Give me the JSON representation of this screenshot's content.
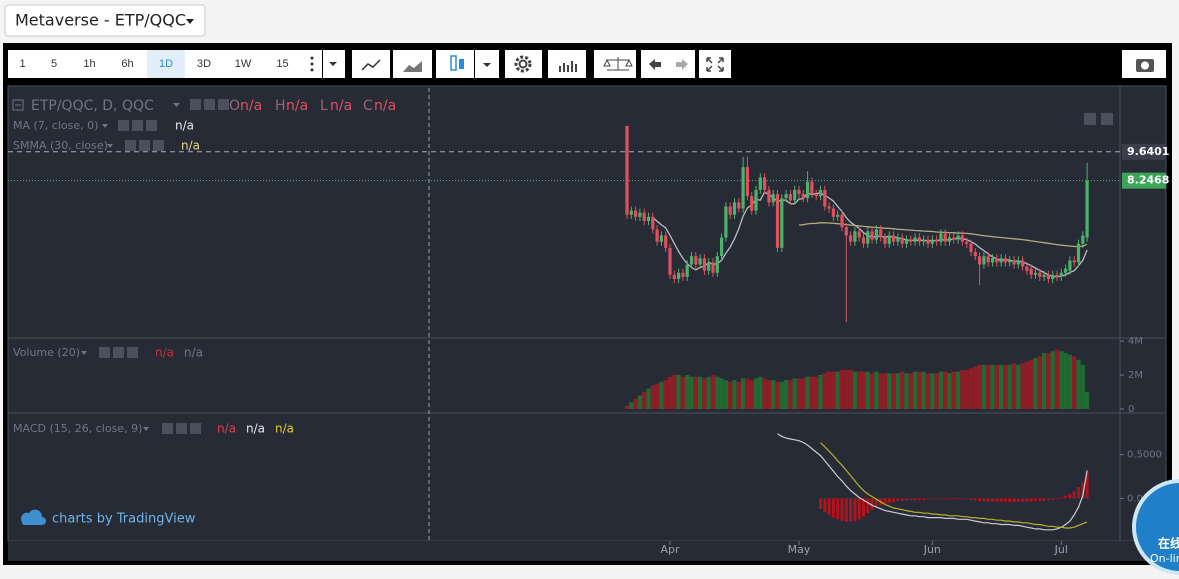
{
  "header": {
    "symbol": "Metaverse - ETP/QQC"
  },
  "toolbar": {
    "intervals": [
      "1",
      "5",
      "1h",
      "6h",
      "1D",
      "3D",
      "1W",
      "15"
    ],
    "active": 4
  },
  "watermark": "charts by TradingView",
  "chat_widget": {
    "label": "在线",
    "sublabel": "On-line"
  },
  "chart_data": [
    {
      "type": "candlestick",
      "title": "ETP/QQC, D, QQC",
      "ohlc_letters": [
        "O",
        "H",
        "L",
        "C"
      ],
      "ohlc_values": [
        "n/a",
        "n/a",
        "n/a",
        "n/a"
      ],
      "categories": [
        null,
        null,
        null,
        null,
        null,
        null,
        null,
        null,
        null,
        null,
        "Apr",
        null,
        null,
        null,
        null,
        null,
        null,
        null,
        null,
        null,
        null,
        null,
        null,
        null,
        null,
        null,
        null,
        null,
        null,
        null,
        null,
        null,
        null,
        null,
        null,
        null,
        null,
        null,
        null,
        null,
        "May",
        null,
        null,
        null,
        null,
        null,
        null,
        null,
        null,
        null,
        null,
        null,
        null,
        null,
        null,
        null,
        null,
        null,
        null,
        null,
        null,
        null,
        null,
        null,
        null,
        null,
        null,
        null,
        null,
        null,
        null,
        "Jun",
        null,
        null,
        null,
        null,
        null,
        null,
        null,
        null,
        null,
        null,
        null,
        null,
        null,
        null,
        null,
        null,
        null,
        null,
        null,
        null,
        null,
        null,
        null,
        null,
        null,
        null,
        null,
        null,
        null,
        "Jul",
        null,
        null,
        null,
        null,
        null,
        null
      ],
      "open": [
        10.89,
        6.6,
        6.8,
        6.5,
        6.7,
        6.3,
        6.5,
        5.9,
        5.3,
        5.6,
        5.0,
        3.7,
        3.5,
        3.8,
        3.6,
        4.2,
        4.6,
        4.2,
        4.5,
        3.9,
        4.3,
        3.8,
        4.6,
        5.5,
        7.0,
        6.6,
        7.2,
        6.9,
        8.9,
        7.5,
        6.8,
        7.8,
        8.4,
        7.8,
        7.2,
        7.6,
        5.0,
        7.4,
        7.6,
        7.3,
        7.8,
        7.6,
        7.4,
        8.2,
        7.6,
        7.5,
        7.8,
        7.0,
        6.9,
        6.5,
        6.6,
        6.0,
        5.6,
        5.3,
        5.8,
        5.5,
        5.2,
        5.8,
        5.4,
        5.9,
        5.5,
        5.2,
        5.6,
        5.3,
        5.5,
        5.2,
        5.4,
        5.3,
        5.5,
        5.3,
        5.4,
        5.2,
        5.4,
        5.3,
        5.7,
        5.3,
        5.5,
        5.4,
        5.6,
        5.3,
        5.2,
        4.8,
        4.6,
        4.2,
        4.6,
        4.3,
        4.5,
        4.3,
        4.5,
        4.3,
        4.4,
        4.2,
        4.4,
        4.1,
        4.0,
        3.7,
        3.8,
        3.6,
        3.7,
        3.5,
        3.7,
        3.6,
        3.8,
        3.9,
        4.4,
        4.3,
        5.2,
        5.5
      ],
      "high": [
        10.89,
        7.0,
        7.0,
        6.9,
        6.9,
        6.7,
        6.7,
        6.1,
        5.8,
        5.8,
        5.2,
        3.9,
        4.0,
        4.0,
        4.4,
        4.8,
        4.8,
        4.7,
        4.7,
        4.5,
        4.5,
        4.8,
        5.7,
        7.2,
        7.2,
        7.4,
        7.4,
        9.4,
        9.4,
        7.7,
        8.0,
        8.6,
        8.6,
        8.0,
        7.8,
        7.8,
        7.6,
        7.8,
        7.8,
        8.0,
        8.0,
        7.8,
        8.7,
        8.4,
        7.8,
        8.0,
        8.0,
        7.2,
        7.1,
        6.8,
        6.8,
        6.2,
        5.8,
        6.0,
        6.0,
        5.7,
        6.0,
        6.0,
        6.1,
        6.1,
        5.7,
        5.8,
        5.8,
        5.7,
        5.7,
        5.6,
        5.6,
        5.7,
        5.7,
        5.6,
        5.6,
        5.6,
        5.6,
        5.9,
        5.9,
        5.7,
        5.7,
        5.8,
        5.8,
        5.5,
        5.4,
        5.0,
        4.8,
        4.8,
        4.8,
        4.7,
        4.7,
        4.7,
        4.7,
        4.6,
        4.6,
        4.6,
        4.6,
        4.3,
        4.2,
        4.0,
        4.0,
        3.9,
        3.9,
        3.9,
        3.9,
        4.0,
        4.2,
        4.6,
        4.6,
        5.4,
        5.8,
        9.11
      ],
      "low": [
        6.4,
        6.4,
        6.3,
        6.3,
        6.1,
        6.1,
        5.7,
        5.1,
        5.1,
        4.8,
        3.5,
        3.3,
        3.3,
        3.4,
        3.4,
        4.0,
        4.0,
        4.0,
        3.7,
        3.7,
        3.6,
        3.6,
        4.4,
        5.3,
        6.4,
        6.4,
        6.7,
        6.7,
        7.3,
        6.6,
        6.6,
        7.6,
        7.6,
        7.0,
        7.0,
        4.8,
        4.8,
        7.2,
        7.1,
        7.1,
        7.4,
        7.2,
        7.2,
        7.4,
        7.3,
        7.3,
        6.8,
        6.7,
        6.3,
        6.3,
        5.8,
        1.42,
        5.1,
        5.1,
        5.3,
        5.0,
        5.0,
        5.2,
        5.2,
        5.3,
        5.0,
        5.0,
        5.1,
        5.1,
        5.0,
        5.0,
        5.1,
        5.1,
        5.1,
        5.1,
        5.0,
        5.0,
        5.1,
        5.1,
        5.1,
        5.1,
        5.2,
        5.2,
        5.1,
        5.0,
        4.6,
        4.4,
        3.2,
        4.0,
        4.1,
        4.1,
        4.1,
        4.1,
        4.1,
        4.1,
        4.0,
        4.0,
        3.9,
        3.7,
        3.5,
        3.5,
        3.4,
        3.4,
        3.3,
        3.3,
        3.4,
        3.4,
        3.6,
        3.7,
        4.1,
        4.1,
        5.0,
        5.3
      ],
      "close": [
        6.6,
        6.8,
        6.5,
        6.7,
        6.3,
        6.5,
        5.9,
        5.3,
        5.6,
        5.0,
        3.7,
        3.5,
        3.8,
        3.6,
        4.2,
        4.6,
        4.2,
        4.5,
        3.9,
        4.3,
        3.8,
        4.6,
        5.5,
        7.0,
        6.6,
        7.2,
        6.9,
        8.9,
        7.5,
        6.8,
        7.8,
        8.4,
        7.8,
        7.2,
        7.6,
        5.0,
        7.4,
        7.6,
        7.3,
        7.8,
        7.6,
        7.4,
        8.2,
        7.6,
        7.5,
        7.8,
        7.0,
        6.9,
        6.5,
        6.6,
        6.0,
        5.6,
        5.3,
        5.8,
        5.5,
        5.2,
        5.8,
        5.4,
        5.9,
        5.5,
        5.2,
        5.6,
        5.3,
        5.5,
        5.2,
        5.4,
        5.3,
        5.5,
        5.3,
        5.4,
        5.2,
        5.4,
        5.3,
        5.7,
        5.3,
        5.5,
        5.4,
        5.6,
        5.3,
        5.2,
        4.8,
        4.6,
        4.2,
        4.6,
        4.3,
        4.5,
        4.3,
        4.5,
        4.3,
        4.4,
        4.2,
        4.4,
        4.1,
        3.9,
        3.7,
        3.8,
        3.6,
        3.7,
        3.5,
        3.7,
        3.6,
        3.8,
        4.0,
        4.4,
        4.3,
        5.2,
        5.6,
        8.2468
      ],
      "up_color": "#4db36a",
      "down_color": "#e0505f",
      "ylim": [
        0.65,
        12.72
      ],
      "reference_line": 9.6401,
      "overlays": [
        {
          "name": "MA (7, close, 0)",
          "color": "#b9bcc3",
          "value_label": "n/a",
          "values": [
            null,
            null,
            null,
            null,
            null,
            null,
            6.47,
            6.29,
            6.11,
            5.97,
            5.61,
            5.21,
            4.83,
            4.5,
            4.24,
            4.06,
            3.94,
            4.06,
            4.11,
            4.3,
            4.21,
            4.24,
            4.4,
            4.75,
            5.04,
            5.44,
            5.93,
            6.54,
            6.93,
            7.07,
            7.34,
            7.31,
            7.7,
            7.56,
            7.43,
            7.24,
            7.31,
            7.31,
            7.13,
            7.13,
            7.36,
            7.37,
            7.66,
            7.57,
            7.63,
            7.64,
            7.53,
            7.41,
            7.26,
            7.0,
            6.76,
            6.46,
            6.24,
            6.09,
            5.94,
            5.74,
            5.59,
            5.51,
            5.56,
            5.56,
            5.51,
            5.56,
            5.53,
            5.49,
            5.44,
            5.39,
            5.36,
            5.37,
            5.36,
            5.37,
            5.34,
            5.36,
            5.34,
            5.4,
            5.37,
            5.4,
            5.43,
            5.47,
            5.44,
            5.4,
            5.3,
            5.19,
            5.01,
            4.87,
            4.71,
            4.57,
            4.47,
            4.4,
            4.44,
            4.4,
            4.36,
            4.36,
            4.31,
            4.24,
            4.14,
            4.03,
            3.91,
            3.81,
            3.69,
            3.64,
            3.6,
            3.64,
            3.7,
            3.81,
            3.9,
            4.14,
            4.4,
            4.9
          ]
        },
        {
          "name": "SMMA (30, close)",
          "color": "#b4aa7c",
          "value_label": "n/a",
          "values": [
            null,
            null,
            null,
            null,
            null,
            null,
            null,
            null,
            null,
            null,
            null,
            null,
            null,
            null,
            null,
            null,
            null,
            null,
            null,
            null,
            null,
            null,
            null,
            null,
            null,
            null,
            null,
            null,
            null,
            null,
            null,
            null,
            null,
            null,
            null,
            null,
            null,
            null,
            null,
            null,
            6.1,
            6.12,
            6.16,
            6.18,
            6.19,
            6.21,
            6.21,
            6.2,
            6.19,
            6.17,
            6.15,
            6.13,
            6.1,
            6.08,
            6.06,
            6.04,
            6.02,
            6.0,
            5.99,
            5.97,
            5.95,
            5.94,
            5.92,
            5.9,
            5.89,
            5.87,
            5.86,
            5.84,
            5.83,
            5.81,
            5.8,
            5.79,
            5.77,
            5.76,
            5.75,
            5.74,
            5.73,
            5.72,
            5.71,
            5.7,
            5.68,
            5.65,
            5.62,
            5.59,
            5.57,
            5.54,
            5.52,
            5.5,
            5.48,
            5.46,
            5.44,
            5.42,
            5.4,
            5.37,
            5.34,
            5.31,
            5.28,
            5.25,
            5.22,
            5.19,
            5.16,
            5.13,
            5.11,
            5.09,
            5.07,
            5.07,
            5.08,
            5.18
          ]
        }
      ]
    },
    {
      "type": "bar",
      "title": "Volume (20)",
      "legend_values": [
        "n/a",
        "n/a"
      ],
      "up_color": "#1f6b32",
      "down_color": "#8e1d27",
      "values": [
        0.2,
        0.4,
        0.6,
        0.8,
        1.0,
        1.2,
        1.4,
        1.5,
        1.6,
        1.7,
        1.9,
        2.0,
        2.0,
        1.9,
        2.0,
        1.9,
        1.9,
        1.9,
        1.8,
        1.9,
        2.0,
        1.9,
        1.8,
        1.7,
        1.6,
        1.7,
        1.6,
        1.8,
        1.8,
        1.7,
        1.8,
        1.9,
        1.8,
        1.7,
        1.7,
        1.6,
        1.6,
        1.7,
        1.7,
        1.8,
        1.8,
        1.8,
        1.9,
        1.9,
        1.9,
        2.0,
        2.1,
        2.2,
        2.2,
        2.2,
        2.3,
        2.3,
        2.3,
        2.2,
        2.2,
        2.2,
        2.2,
        2.1,
        2.2,
        2.1,
        2.1,
        2.1,
        2.1,
        2.1,
        2.2,
        2.1,
        2.1,
        2.2,
        2.2,
        2.2,
        2.1,
        2.1,
        2.1,
        2.2,
        2.2,
        2.1,
        2.2,
        2.2,
        2.3,
        2.3,
        2.4,
        2.5,
        2.6,
        2.6,
        2.6,
        2.6,
        2.6,
        2.6,
        2.6,
        2.6,
        2.7,
        2.6,
        2.7,
        2.8,
        2.9,
        3.0,
        3.1,
        3.3,
        3.3,
        3.4,
        3.5,
        3.4,
        3.3,
        3.2,
        3.1,
        2.9,
        2.6,
        1.0
      ],
      "ylim": [
        0,
        4.18
      ],
      "yticks": [
        0,
        {
          "value": 2,
          "label": "2M"
        },
        {
          "value": 4,
          "label": "4M"
        }
      ]
    },
    {
      "type": "macd",
      "title": "MACD (15, 26, close, 9)",
      "legend_values": [
        "n/a",
        "n/a",
        "n/a"
      ],
      "ylim": [
        -0.477,
        0.966
      ],
      "yticks": [
        {
          "value": 0.5,
          "label": "0.5000"
        },
        {
          "value": 0,
          "label": "0.0000"
        }
      ],
      "macd": {
        "color": "#c9ccd2",
        "values": [
          null,
          null,
          null,
          null,
          null,
          null,
          null,
          null,
          null,
          null,
          null,
          null,
          null,
          null,
          null,
          null,
          null,
          null,
          null,
          null,
          null,
          null,
          null,
          null,
          null,
          null,
          null,
          null,
          null,
          null,
          null,
          null,
          null,
          null,
          null,
          0.74,
          0.71,
          0.69,
          0.68,
          0.67,
          0.66,
          0.64,
          0.61,
          0.57,
          0.53,
          0.49,
          0.43,
          0.37,
          0.31,
          0.25,
          0.2,
          0.14,
          0.09,
          0.05,
          0.01,
          -0.02,
          -0.05,
          -0.08,
          -0.1,
          -0.12,
          -0.14,
          -0.15,
          -0.16,
          -0.17,
          -0.18,
          -0.19,
          -0.2,
          -0.2,
          -0.21,
          -0.21,
          -0.22,
          -0.22,
          -0.22,
          -0.22,
          -0.23,
          -0.23,
          -0.23,
          -0.24,
          -0.24,
          -0.24,
          -0.25,
          -0.26,
          -0.27,
          -0.28,
          -0.28,
          -0.29,
          -0.29,
          -0.3,
          -0.3,
          -0.3,
          -0.31,
          -0.31,
          -0.32,
          -0.33,
          -0.34,
          -0.35,
          -0.35,
          -0.36,
          -0.36,
          -0.36,
          -0.35,
          -0.33,
          -0.3,
          -0.26,
          -0.19,
          -0.1,
          0.03,
          0.32
        ]
      },
      "signal": {
        "color": "#b8b22a",
        "values": [
          null,
          null,
          null,
          null,
          null,
          null,
          null,
          null,
          null,
          null,
          null,
          null,
          null,
          null,
          null,
          null,
          null,
          null,
          null,
          null,
          null,
          null,
          null,
          null,
          null,
          null,
          null,
          null,
          null,
          null,
          null,
          null,
          null,
          null,
          null,
          null,
          null,
          null,
          null,
          null,
          null,
          null,
          null,
          null,
          null,
          0.64,
          0.59,
          0.54,
          0.49,
          0.43,
          0.38,
          0.32,
          0.26,
          0.2,
          0.14,
          0.09,
          0.05,
          0.02,
          -0.01,
          -0.04,
          -0.07,
          -0.09,
          -0.11,
          -0.12,
          -0.13,
          -0.14,
          -0.15,
          -0.16,
          -0.16,
          -0.17,
          -0.17,
          -0.18,
          -0.18,
          -0.19,
          -0.19,
          -0.2,
          -0.2,
          -0.2,
          -0.21,
          -0.21,
          -0.22,
          -0.22,
          -0.23,
          -0.23,
          -0.24,
          -0.24,
          -0.25,
          -0.25,
          -0.26,
          -0.26,
          -0.27,
          -0.27,
          -0.28,
          -0.28,
          -0.29,
          -0.3,
          -0.3,
          -0.31,
          -0.32,
          -0.32,
          -0.33,
          -0.33,
          -0.34,
          -0.34,
          -0.33,
          -0.31,
          -0.29,
          -0.27
        ]
      },
      "histogram": {
        "color": "#b3121c",
        "values": [
          null,
          null,
          null,
          null,
          null,
          null,
          null,
          null,
          null,
          null,
          null,
          null,
          null,
          null,
          null,
          null,
          null,
          null,
          null,
          null,
          null,
          null,
          null,
          null,
          null,
          null,
          null,
          null,
          null,
          null,
          null,
          null,
          null,
          null,
          null,
          null,
          null,
          null,
          null,
          null,
          null,
          null,
          null,
          null,
          null,
          -0.12,
          -0.16,
          -0.19,
          -0.22,
          -0.24,
          -0.26,
          -0.27,
          -0.27,
          -0.26,
          -0.24,
          -0.21,
          -0.17,
          -0.13,
          -0.1,
          -0.08,
          -0.06,
          -0.05,
          -0.04,
          -0.03,
          -0.03,
          -0.02,
          -0.02,
          -0.02,
          -0.02,
          -0.02,
          -0.01,
          -0.01,
          -0.01,
          -0.01,
          -0.01,
          -0.01,
          -0.01,
          -0.01,
          -0.01,
          -0.01,
          -0.02,
          -0.02,
          -0.03,
          -0.03,
          -0.04,
          -0.04,
          -0.04,
          -0.04,
          -0.04,
          -0.04,
          -0.04,
          -0.04,
          -0.04,
          -0.04,
          -0.04,
          -0.03,
          -0.03,
          -0.03,
          -0.02,
          -0.02,
          -0.01,
          0.01,
          0.03,
          0.05,
          0.08,
          0.13,
          0.18,
          0.3
        ]
      }
    }
  ]
}
